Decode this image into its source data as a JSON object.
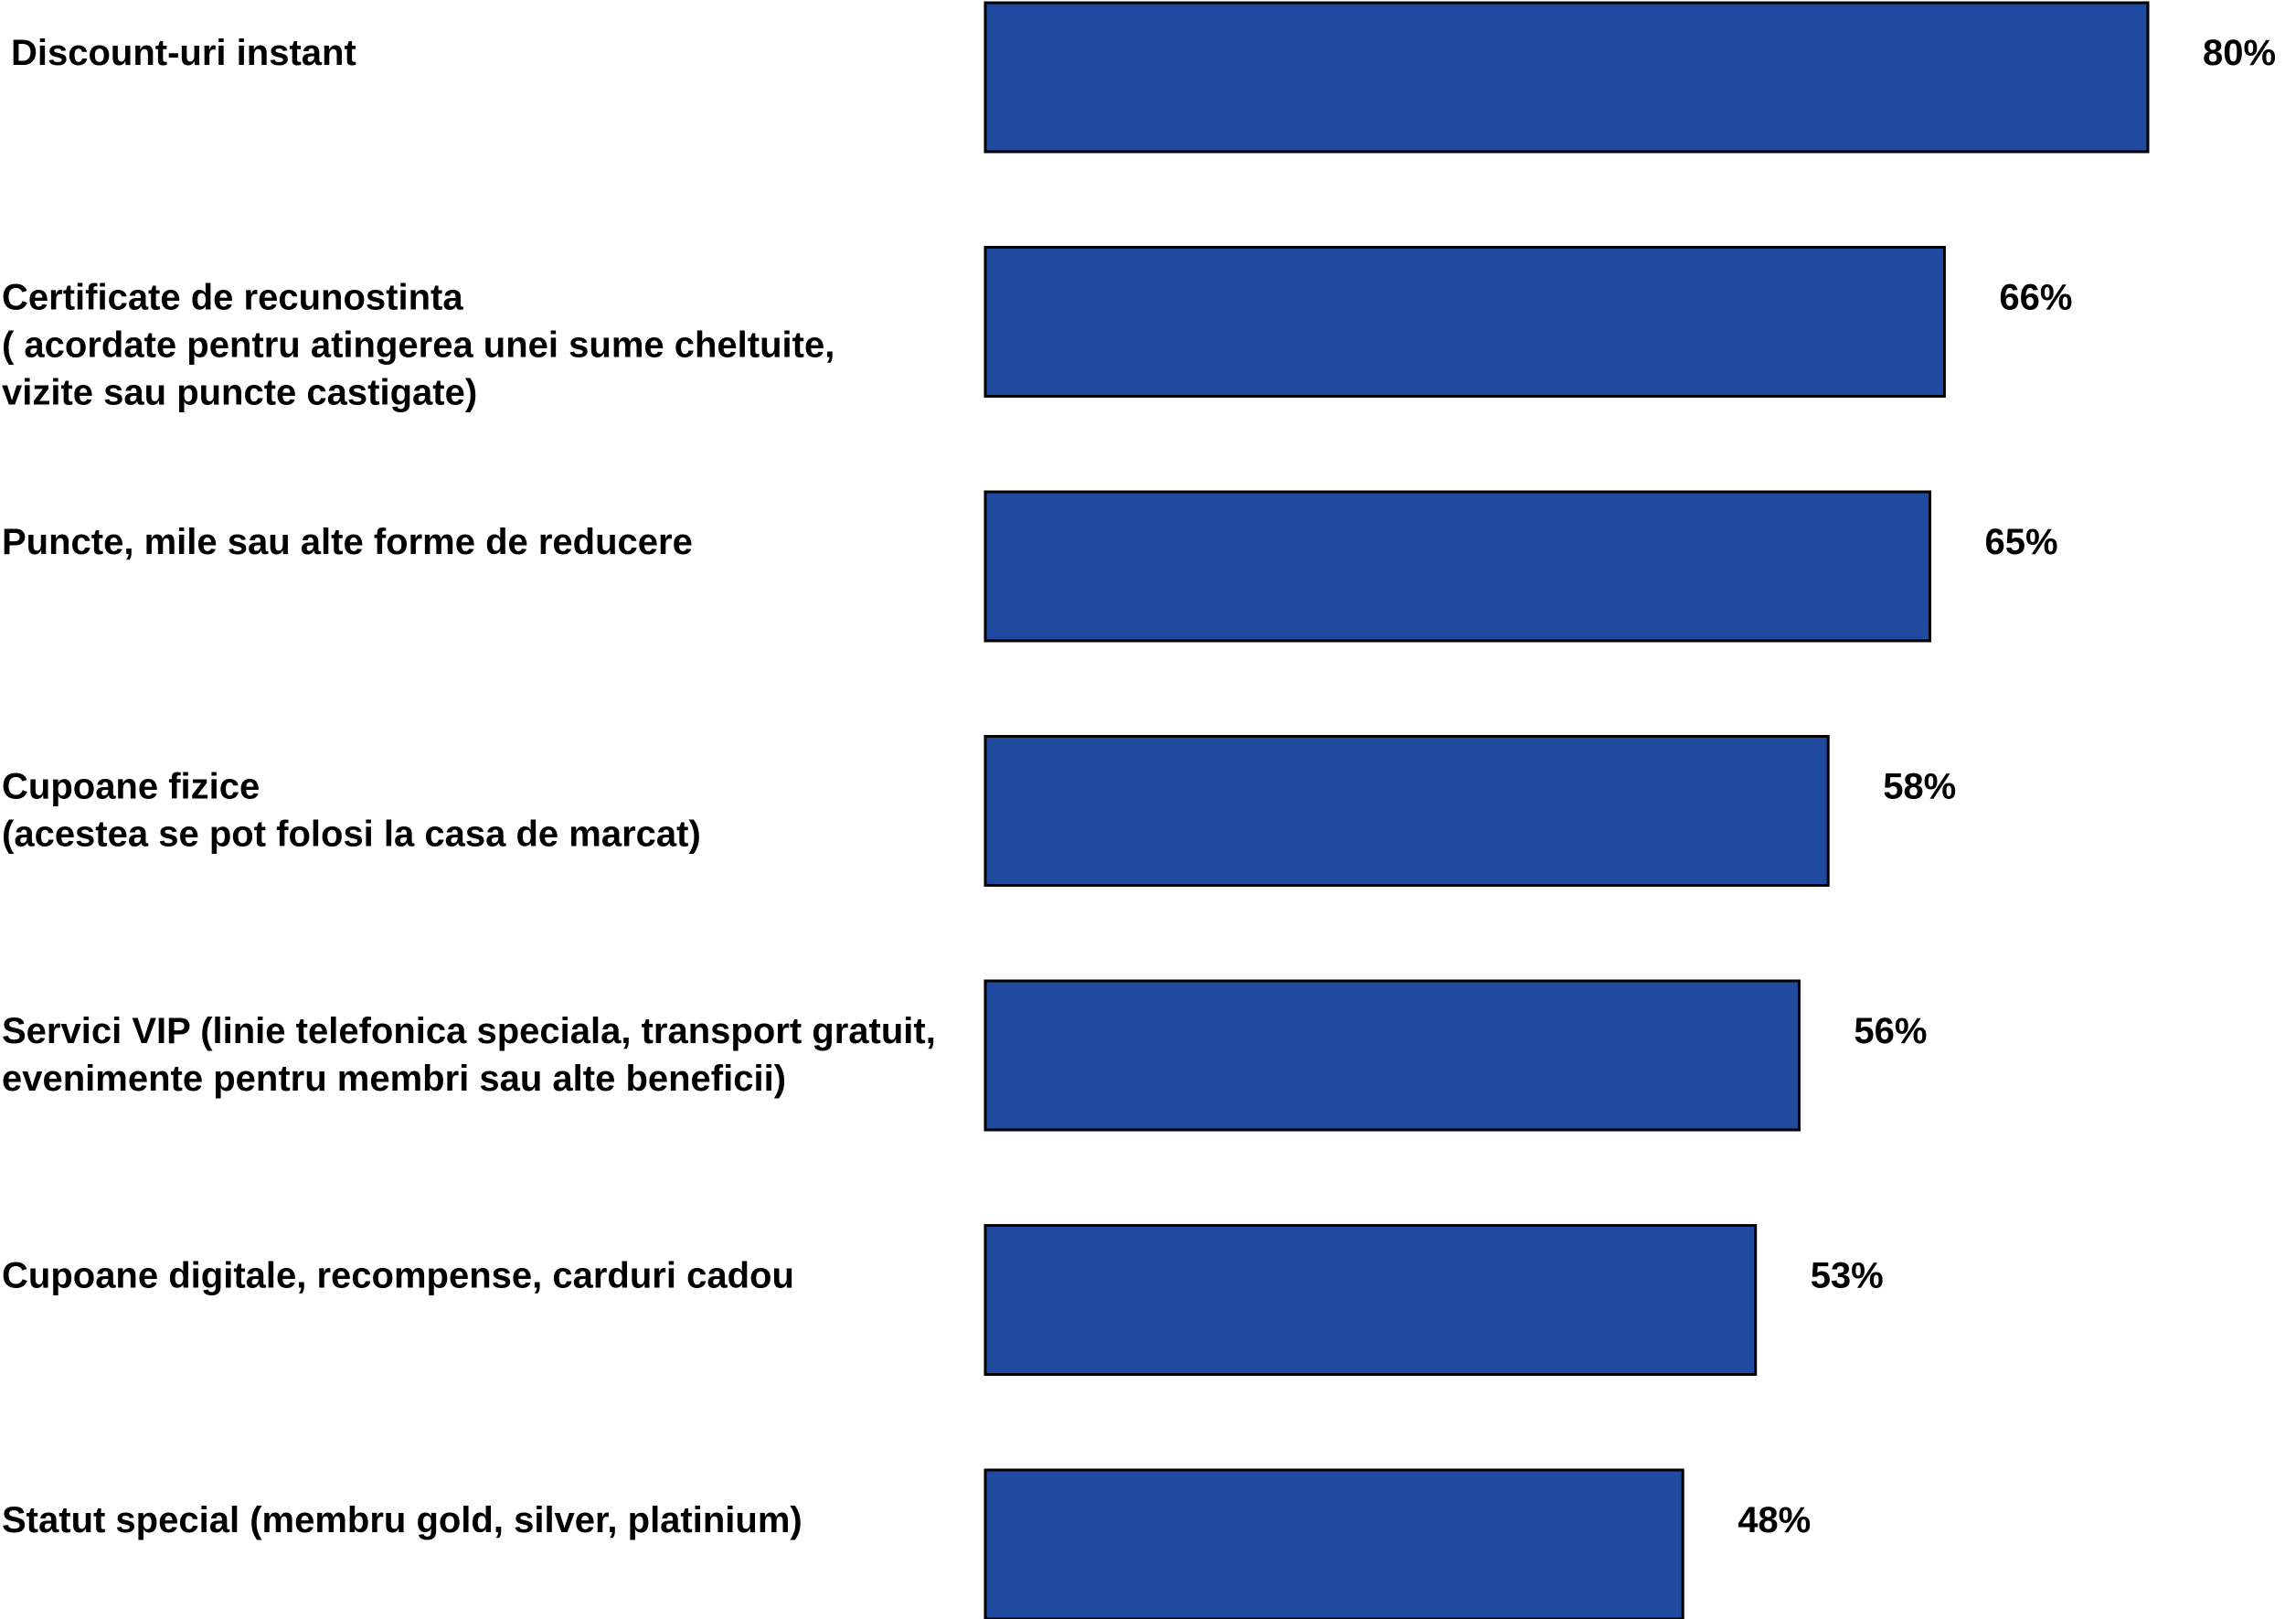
{
  "chart_data": {
    "type": "bar",
    "orientation": "horizontal",
    "bar_color": "#2049A0",
    "categories": [
      [
        "Discount-uri instant"
      ],
      [
        "Certificate de recunostinta",
        "( acordate pentru atingerea unei sume cheltuite,",
        "vizite sau puncte castigate)"
      ],
      [
        "Puncte, mile sau alte forme de reducere"
      ],
      [
        "Cupoane fizice",
        "(acestea se pot folosi la casa de marcat)"
      ],
      [
        "Servici VIP (linie telefonica speciala, transport gratuit,",
        "evenimente pentru membri sau alte beneficii)"
      ],
      [
        "Cupoane digitale,  recompense, carduri cadou"
      ],
      [
        "Statut special (membru gold, silver, platinium)"
      ]
    ],
    "values": [
      80,
      66,
      65,
      58,
      56,
      53,
      48
    ],
    "value_labels": [
      "80%",
      "66%",
      "65%",
      "58%",
      "56%",
      "53%",
      "48%"
    ],
    "grid": false,
    "legend": "none"
  }
}
